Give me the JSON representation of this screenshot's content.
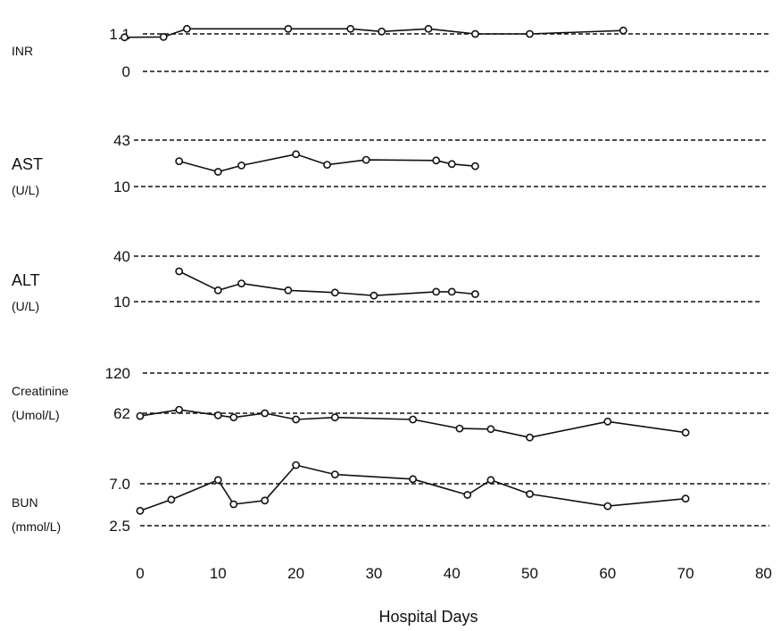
{
  "chart_data": {
    "type": "line",
    "xlabel": "Hospital Days",
    "xlim": [
      0,
      80
    ],
    "x_ticks": [
      "0",
      "10",
      "20",
      "30",
      "40",
      "50",
      "60",
      "70",
      "80"
    ],
    "panels": [
      {
        "label": "INR",
        "unit": "",
        "ref_lines": [
          {
            "label": "1.1",
            "value": 1.1
          },
          {
            "label": "0",
            "value": 0
          }
        ],
        "x": [
          -2,
          3,
          6,
          19,
          27,
          31,
          37,
          43,
          50,
          62
        ],
        "y": [
          1.0,
          1.01,
          1.25,
          1.25,
          1.25,
          1.17,
          1.25,
          1.1,
          1.1,
          1.2
        ]
      },
      {
        "label": "AST",
        "unit": "(U/L)",
        "ref_lines": [
          {
            "label": "43",
            "value": 43
          },
          {
            "label": "10",
            "value": 10
          }
        ],
        "x": [
          5,
          10,
          13,
          20,
          24,
          29,
          38,
          40,
          43
        ],
        "y": [
          28,
          20.5,
          25,
          33,
          25.5,
          29,
          28.5,
          26,
          24.5
        ]
      },
      {
        "label": "ALT",
        "unit": "(U/L)",
        "ref_lines": [
          {
            "label": "40",
            "value": 40
          },
          {
            "label": "10",
            "value": 10
          }
        ],
        "x": [
          5,
          10,
          13,
          19,
          25,
          30,
          38,
          40,
          43
        ],
        "y": [
          30,
          17.5,
          22,
          17.5,
          16,
          14,
          16.5,
          16.5,
          15
        ]
      },
      {
        "label": "Creatinine",
        "unit": "(Umol/L)",
        "ref_lines": [
          {
            "label": "120",
            "value": 120
          },
          {
            "label": "62",
            "value": 62
          }
        ],
        "x": [
          0,
          5,
          10,
          12,
          16,
          20,
          25,
          35,
          41,
          45,
          50,
          60,
          70
        ],
        "y": [
          58,
          67,
          59,
          56,
          62,
          53,
          56,
          53,
          40,
          39,
          27,
          50,
          34
        ]
      },
      {
        "label": "BUN",
        "unit": "(mmol/L)",
        "ref_lines": [
          {
            "label": "7.0",
            "value": 7.0
          },
          {
            "label": "2.5",
            "value": 2.5
          }
        ],
        "x": [
          0,
          4,
          10,
          12,
          16,
          20,
          25,
          35,
          42,
          45,
          50,
          60,
          70
        ],
        "y": [
          4.1,
          5.3,
          7.4,
          4.8,
          5.2,
          9.0,
          8.0,
          7.5,
          5.8,
          7.4,
          5.9,
          4.6,
          5.4
        ]
      }
    ]
  }
}
